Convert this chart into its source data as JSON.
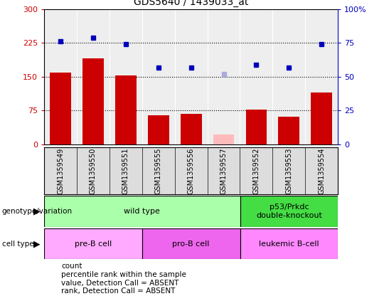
{
  "title": "GDS5640 / 1439033_at",
  "samples": [
    "GSM1359549",
    "GSM1359550",
    "GSM1359551",
    "GSM1359555",
    "GSM1359556",
    "GSM1359557",
    "GSM1359552",
    "GSM1359553",
    "GSM1359554"
  ],
  "bar_values": [
    160,
    190,
    153,
    65,
    68,
    22,
    78,
    62,
    115
  ],
  "bar_colors": [
    "#cc0000",
    "#cc0000",
    "#cc0000",
    "#cc0000",
    "#cc0000",
    "#ffbbbb",
    "#cc0000",
    "#cc0000",
    "#cc0000"
  ],
  "dot_values": [
    76,
    79,
    74,
    57,
    57,
    52,
    59,
    57,
    74
  ],
  "dot_colors": [
    "#0000bb",
    "#0000bb",
    "#0000bb",
    "#0000bb",
    "#0000bb",
    "#aaaadd",
    "#0000bb",
    "#0000bb",
    "#0000bb"
  ],
  "ylim_left": [
    0,
    300
  ],
  "ylim_right": [
    0,
    100
  ],
  "yticks_left": [
    0,
    75,
    150,
    225,
    300
  ],
  "yticks_right": [
    0,
    25,
    50,
    75,
    100
  ],
  "ytick_labels_left": [
    "0",
    "75",
    "150",
    "225",
    "300"
  ],
  "ytick_labels_right": [
    "0",
    "25",
    "50",
    "75",
    "100%"
  ],
  "hlines": [
    75,
    150,
    225
  ],
  "genotype_groups": [
    {
      "label": "wild type",
      "span": [
        0,
        6
      ],
      "color": "#aaffaa"
    },
    {
      "label": "p53/Prkdc\ndouble-knockout",
      "span": [
        6,
        9
      ],
      "color": "#44dd44"
    }
  ],
  "celltype_groups": [
    {
      "label": "pre-B cell",
      "span": [
        0,
        3
      ],
      "color": "#ffaaff"
    },
    {
      "label": "pro-B cell",
      "span": [
        3,
        6
      ],
      "color": "#ee66ee"
    },
    {
      "label": "leukemic B-cell",
      "span": [
        6,
        9
      ],
      "color": "#ff88ff"
    }
  ],
  "legend_items": [
    {
      "label": "count",
      "color": "#cc0000"
    },
    {
      "label": "percentile rank within the sample",
      "color": "#0000bb"
    },
    {
      "label": "value, Detection Call = ABSENT",
      "color": "#ffbbbb"
    },
    {
      "label": "rank, Detection Call = ABSENT",
      "color": "#aaaadd"
    }
  ],
  "left_tick_color": "#cc0000",
  "right_tick_color": "#0000bb",
  "chart_bg": "#eeeeee",
  "background_color": "#ffffff"
}
